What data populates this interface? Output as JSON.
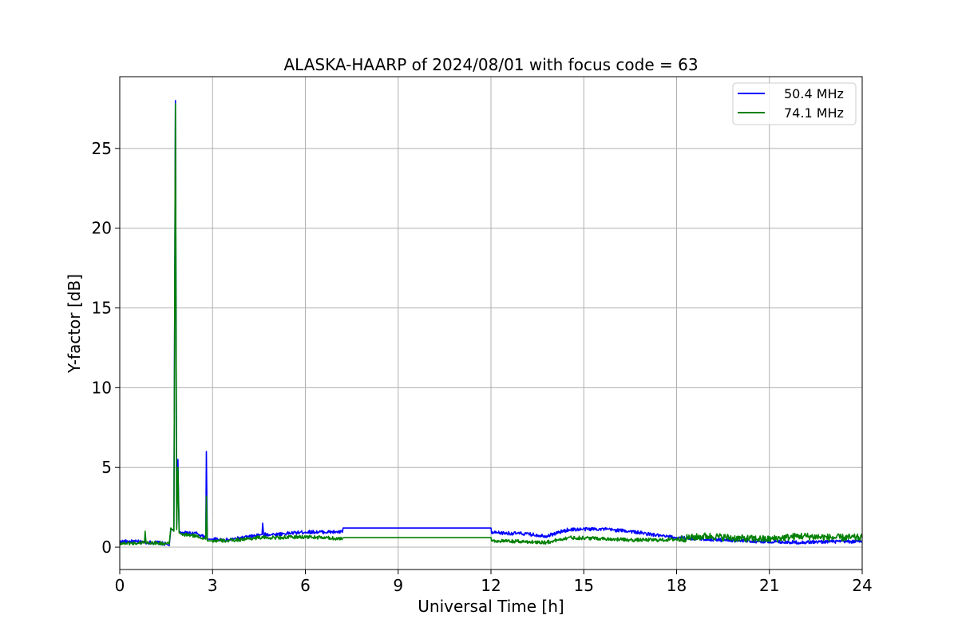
{
  "chart_data": {
    "type": "line",
    "title": "ALASKA-HAARP of 2024/08/01 with focus code = 63",
    "xlabel": "Universal Time [h]",
    "ylabel": "Y-factor [dB]",
    "xlim": [
      0,
      24
    ],
    "ylim": [
      -1.4,
      29.5
    ],
    "xticks": [
      0,
      3,
      6,
      9,
      12,
      15,
      18,
      21,
      24
    ],
    "yticks": [
      0,
      5,
      10,
      15,
      20,
      25
    ],
    "grid": true,
    "legend_position": "top-right",
    "series": [
      {
        "name": "50.4 MHz",
        "color": "#0000ff",
        "points": [
          [
            0,
            0.35
          ],
          [
            0.5,
            0.35
          ],
          [
            0.8,
            0.3
          ],
          [
            1.2,
            0.3
          ],
          [
            1.5,
            0.2
          ],
          [
            1.6,
            0.1
          ],
          [
            1.65,
            1.1
          ],
          [
            1.75,
            1.1
          ],
          [
            1.8,
            28.0
          ],
          [
            1.84,
            1.2
          ],
          [
            1.88,
            5.5
          ],
          [
            1.92,
            1.0
          ],
          [
            2.0,
            0.9
          ],
          [
            2.5,
            0.85
          ],
          [
            2.78,
            0.6
          ],
          [
            2.8,
            6.0
          ],
          [
            2.83,
            0.5
          ],
          [
            3.0,
            0.5
          ],
          [
            3.5,
            0.45
          ],
          [
            4.0,
            0.6
          ],
          [
            4.5,
            0.75
          ],
          [
            4.6,
            0.8
          ],
          [
            4.62,
            1.5
          ],
          [
            4.65,
            0.8
          ],
          [
            5.0,
            0.8
          ],
          [
            6.0,
            0.95
          ],
          [
            7.0,
            0.95
          ],
          [
            7.2,
            0.95
          ],
          [
            7.22,
            1.2
          ],
          [
            12.0,
            1.2
          ],
          [
            12.02,
            0.9
          ],
          [
            13.0,
            0.85
          ],
          [
            13.8,
            0.7
          ],
          [
            14.5,
            1.1
          ],
          [
            15.5,
            1.15
          ],
          [
            16.5,
            1.0
          ],
          [
            17.5,
            0.7
          ],
          [
            18.0,
            0.6
          ],
          [
            19.0,
            0.5
          ],
          [
            20.0,
            0.4
          ],
          [
            21.0,
            0.35
          ],
          [
            22.0,
            0.3
          ],
          [
            23.0,
            0.35
          ],
          [
            24.0,
            0.35
          ]
        ]
      },
      {
        "name": "74.1 MHz",
        "color": "#008000",
        "points": [
          [
            0,
            0.25
          ],
          [
            0.5,
            0.25
          ],
          [
            0.8,
            0.3
          ],
          [
            0.82,
            1.0
          ],
          [
            0.85,
            0.3
          ],
          [
            1.2,
            0.25
          ],
          [
            1.6,
            0.2
          ],
          [
            1.65,
            1.2
          ],
          [
            1.75,
            1.0
          ],
          [
            1.8,
            27.8
          ],
          [
            1.84,
            1.1
          ],
          [
            1.88,
            5.0
          ],
          [
            1.92,
            0.9
          ],
          [
            2.0,
            0.8
          ],
          [
            2.5,
            0.7
          ],
          [
            2.78,
            0.5
          ],
          [
            2.8,
            3.2
          ],
          [
            2.83,
            0.4
          ],
          [
            3.0,
            0.4
          ],
          [
            3.5,
            0.4
          ],
          [
            4.0,
            0.5
          ],
          [
            4.5,
            0.6
          ],
          [
            5.0,
            0.6
          ],
          [
            6.0,
            0.65
          ],
          [
            7.0,
            0.55
          ],
          [
            7.2,
            0.55
          ],
          [
            7.22,
            0.6
          ],
          [
            12.0,
            0.6
          ],
          [
            12.02,
            0.4
          ],
          [
            13.0,
            0.35
          ],
          [
            13.8,
            0.3
          ],
          [
            14.5,
            0.6
          ],
          [
            15.5,
            0.55
          ],
          [
            16.5,
            0.45
          ],
          [
            17.5,
            0.45
          ],
          [
            18.0,
            0.5
          ],
          [
            19.0,
            0.7
          ],
          [
            20.0,
            0.55
          ],
          [
            21.0,
            0.5
          ],
          [
            22.0,
            0.7
          ],
          [
            23.0,
            0.6
          ],
          [
            24.0,
            0.6
          ]
        ]
      }
    ]
  }
}
